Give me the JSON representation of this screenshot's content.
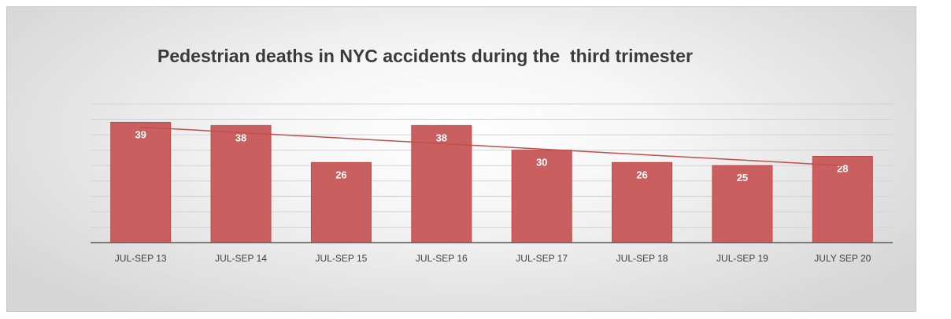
{
  "chart_data": {
    "type": "bar",
    "title": "Pedestrian deaths in NYC accidents during the  third trimester",
    "categories": [
      "JUL-SEP 13",
      "JUL-SEP 14",
      "JUL-SEP 15",
      "JUL-SEP 16",
      "JUL-SEP 17",
      "JUL-SEP 18",
      "JUL-SEP 19",
      "JULY SEP 20"
    ],
    "series": [
      {
        "values": [
          39,
          38,
          26,
          38,
          30,
          26,
          25,
          28
        ]
      }
    ],
    "ylim": [
      0,
      45
    ],
    "trendline": "linear",
    "grid": true,
    "colors": {
      "bar": "#c9605f",
      "bar_stroke": "#b94a48",
      "trendline": "#c0504d",
      "grid": "#d4d4d4",
      "axis": "#595959",
      "data_label": "#ffffff",
      "tick_label": "#404040"
    }
  }
}
